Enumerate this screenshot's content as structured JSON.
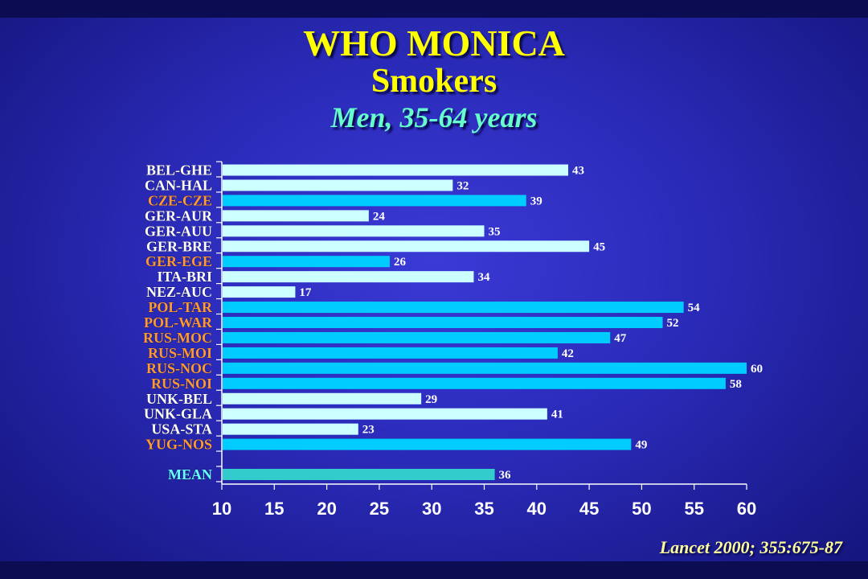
{
  "title": "WHO MONICA",
  "subtitle": "Smokers",
  "subtitle2": "Men, 35-64 years",
  "citation": "Lancet 2000; 355:675-87",
  "chart_data": {
    "type": "bar",
    "orientation": "horizontal",
    "categories": [
      "BEL-GHE",
      "CAN-HAL",
      "CZE-CZE",
      "GER-AUR",
      "GER-AUU",
      "GER-BRE",
      "GER-EGE",
      "ITA-BRI",
      "NEZ-AUC",
      "POL-TAR",
      "POL-WAR",
      "RUS-MOC",
      "RUS-MOI",
      "RUS-NOC",
      "RUS-NOI",
      "UNK-BEL",
      "UNK-GLA",
      "USA-STA",
      "YUG-NOS"
    ],
    "values": [
      43,
      32,
      39,
      24,
      35,
      45,
      26,
      34,
      17,
      54,
      52,
      47,
      42,
      60,
      58,
      29,
      41,
      23,
      49
    ],
    "groups": [
      "west",
      "west",
      "east",
      "west",
      "west",
      "west",
      "east",
      "west",
      "west",
      "east",
      "east",
      "east",
      "east",
      "east",
      "east",
      "west",
      "west",
      "west",
      "east"
    ],
    "mean_label": "MEAN",
    "mean_value": 36,
    "xlim": [
      10,
      60
    ],
    "xticks": [
      10,
      15,
      20,
      25,
      30,
      35,
      40,
      45,
      50,
      55,
      60
    ],
    "colors": {
      "west_bar": "#ccffff",
      "east_bar": "#00ccff",
      "mean_bar": "#33cccc",
      "west_label": "#ffffff",
      "east_label": "#ff9933",
      "mean_label": "#66ffff"
    }
  }
}
